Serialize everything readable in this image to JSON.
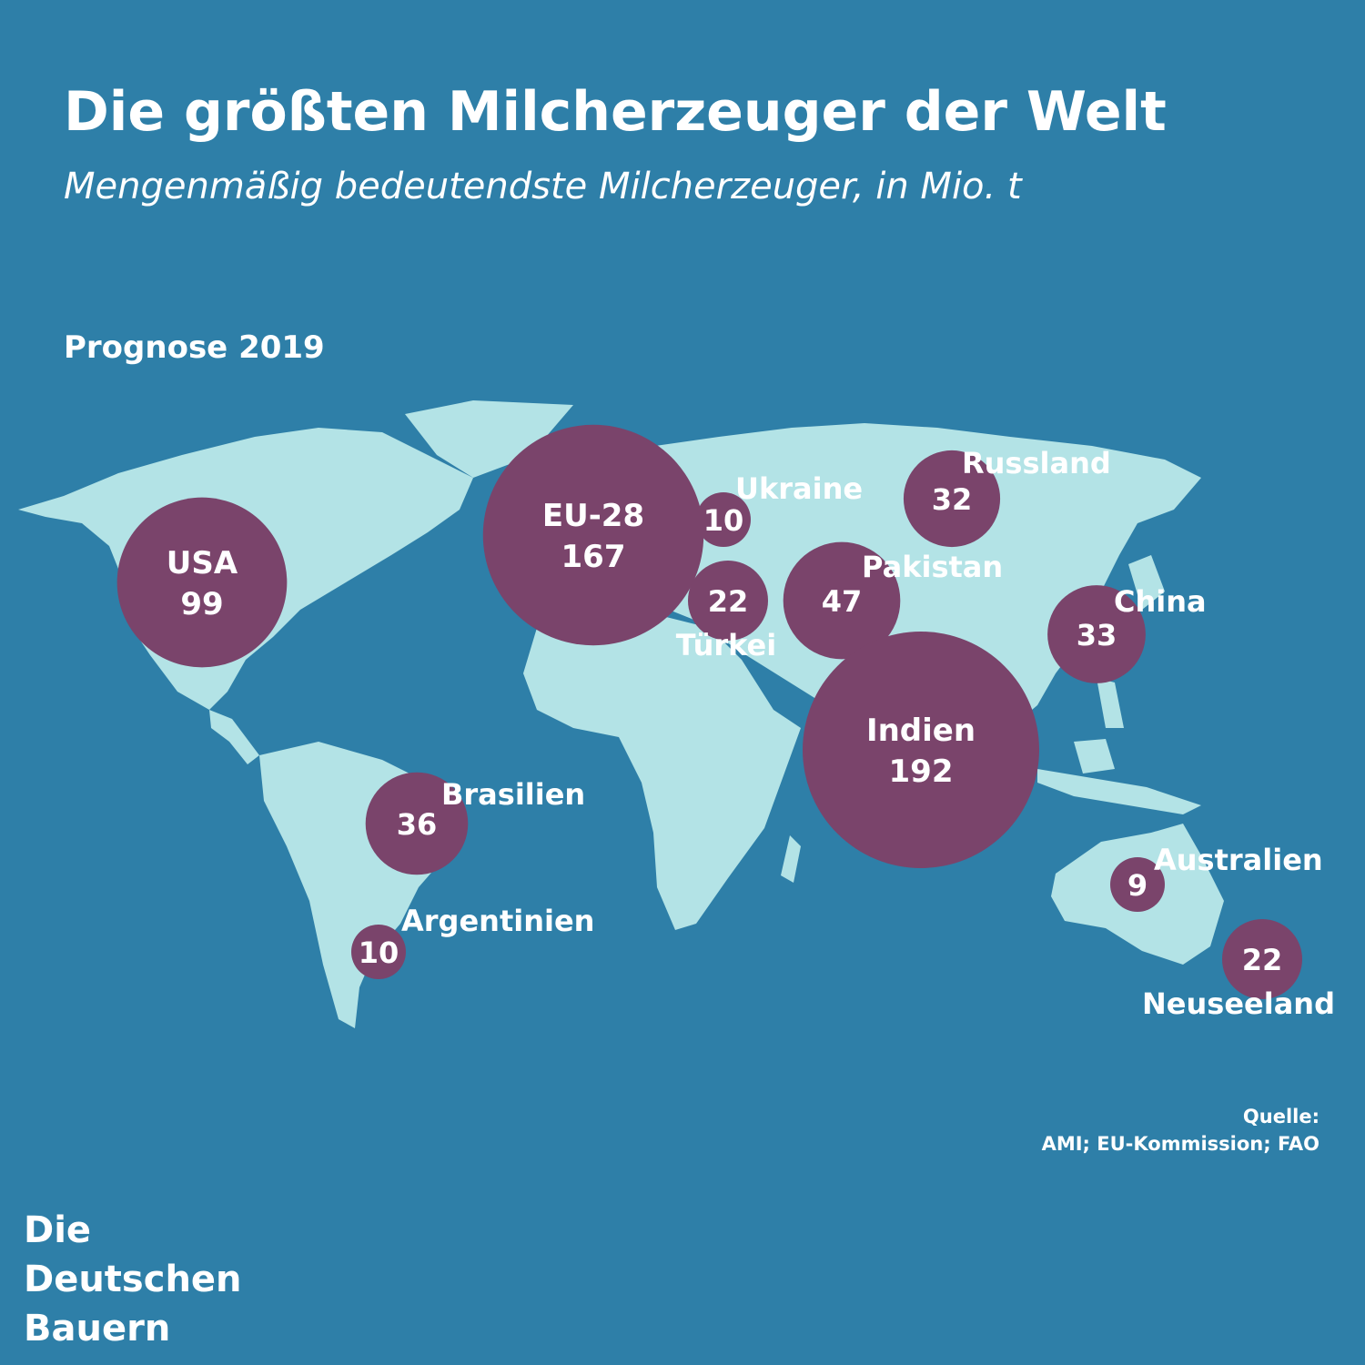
{
  "title": "Die größten Milcherzeuger der Welt",
  "subtitle": "Mengenmäßig bedeutendste Milcherzeuger, in Mio. t",
  "period": "Prognose 2019",
  "colors": {
    "background": "#2e7fa8",
    "land": "#b3e3e6",
    "bubble": "#7a446b",
    "text": "#ffffff"
  },
  "producers": [
    {
      "name": "USA",
      "value": "99",
      "label_inside": true,
      "lon": -98,
      "lat": 39
    },
    {
      "name": "EU-28",
      "value": "167",
      "label_inside": true,
      "lon": 10,
      "lat": 50
    },
    {
      "name": "Ukraine",
      "value": "10",
      "label_inside": false,
      "label_pos": "top-right",
      "lon": 31,
      "lat": 49
    },
    {
      "name": "Türkei",
      "value": "22",
      "label_inside": false,
      "label_pos": "bottom",
      "lon": 33,
      "lat": 39
    },
    {
      "name": "Pakistan",
      "value": "47",
      "label_inside": false,
      "label_pos": "top-right",
      "lon": 69,
      "lat": 30
    },
    {
      "name": "Russland",
      "value": "32",
      "label_inside": false,
      "label_pos": "top-right",
      "lon": 90,
      "lat": 58
    },
    {
      "name": "China",
      "value": "33",
      "label_inside": false,
      "label_pos": "top-right",
      "lon": 112,
      "lat": 33
    },
    {
      "name": "Indien",
      "value": "192",
      "label_inside": true,
      "lon": 78,
      "lat": 21
    },
    {
      "name": "Brasilien",
      "value": "36",
      "label_inside": false,
      "label_pos": "top-right",
      "lon": -48,
      "lat": -15
    },
    {
      "name": "Argentinien",
      "value": "10",
      "label_inside": false,
      "label_pos": "top-right",
      "lon": -62,
      "lat": -36
    },
    {
      "name": "Australien",
      "value": "9",
      "label_inside": false,
      "label_pos": "top-right",
      "lon": 143,
      "lat": -25
    },
    {
      "name": "Neuseeland",
      "value": "22",
      "label_inside": false,
      "label_pos": "bottom",
      "lon": 174,
      "lat": -41
    }
  ],
  "source": {
    "label": "Quelle:",
    "text": "AMI; EU-Kommission; FAO"
  },
  "logo": {
    "line1": "Die",
    "line2": "Deutschen",
    "line3": "Bauern"
  }
}
